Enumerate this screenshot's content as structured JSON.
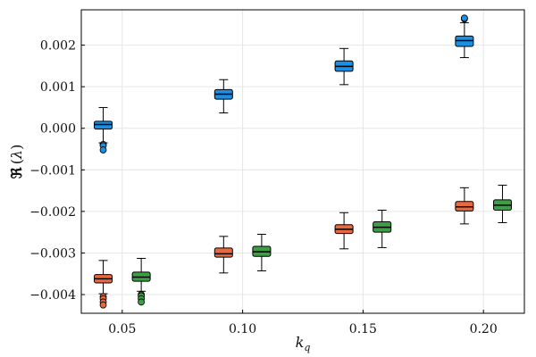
{
  "chart_data": {
    "type": "box",
    "title": "",
    "xlabel": "k_q",
    "ylabel": "ℜ(λ)",
    "xlim": [
      0.033,
      0.217
    ],
    "ylim": [
      -0.00445,
      0.00285
    ],
    "x_ticks": [
      0.05,
      0.1,
      0.15,
      0.2
    ],
    "x_tick_labels": [
      "0.05",
      "0.10",
      "0.15",
      "0.20"
    ],
    "y_ticks": [
      -0.004,
      -0.003,
      -0.002,
      -0.001,
      0.0,
      0.001,
      0.002
    ],
    "y_tick_labels": [
      "−0.004",
      "−0.003",
      "−0.002",
      "−0.001",
      "0.000",
      "0.001",
      "0.002"
    ],
    "grid": true,
    "legend": "none",
    "series": [
      {
        "name": "series-blue",
        "color": "#1a8fe3",
        "boxes": [
          {
            "x": 0.05,
            "whisker_low": -0.00035,
            "q1": -2e-05,
            "median": 9e-05,
            "q3": 0.00017,
            "whisker_high": 0.0005,
            "outliers": [
              -0.00039,
              -0.00042,
              -0.00052
            ]
          },
          {
            "x": 0.1,
            "whisker_low": 0.00037,
            "q1": 0.0007,
            "median": 0.00082,
            "q3": 0.00093,
            "whisker_high": 0.00117,
            "outliers": []
          },
          {
            "x": 0.15,
            "whisker_low": 0.00105,
            "q1": 0.00137,
            "median": 0.00149,
            "q3": 0.00162,
            "whisker_high": 0.00192,
            "outliers": []
          },
          {
            "x": 0.2,
            "whisker_low": 0.0017,
            "q1": 0.00197,
            "median": 0.00211,
            "q3": 0.00222,
            "whisker_high": 0.00254,
            "outliers": [
              0.00263,
              0.00265
            ]
          }
        ]
      },
      {
        "name": "series-orange",
        "color": "#e8693f",
        "boxes": [
          {
            "x": 0.05,
            "whisker_low": -0.00398,
            "q1": -0.00372,
            "median": -0.00362,
            "q3": -0.00352,
            "whisker_high": -0.00318,
            "outliers": [
              -0.00405,
              -0.0041,
              -0.00418,
              -0.00425
            ]
          },
          {
            "x": 0.1,
            "whisker_low": -0.00348,
            "q1": -0.0031,
            "median": -0.00302,
            "q3": -0.00288,
            "whisker_high": -0.0026,
            "outliers": []
          },
          {
            "x": 0.15,
            "whisker_low": -0.0029,
            "q1": -0.00253,
            "median": -0.00243,
            "q3": -0.00232,
            "whisker_high": -0.00203,
            "outliers": []
          },
          {
            "x": 0.2,
            "whisker_low": -0.0023,
            "q1": -0.00199,
            "median": -0.00189,
            "q3": -0.00176,
            "whisker_high": -0.00143,
            "outliers": []
          }
        ]
      },
      {
        "name": "series-green",
        "color": "#3d9e46",
        "boxes": [
          {
            "x": 0.05,
            "whisker_low": -0.00392,
            "q1": -0.00368,
            "median": -0.00358,
            "q3": -0.00346,
            "whisker_high": -0.00313,
            "outliers": [
              -0.004,
              -0.00403,
              -0.0041,
              -0.00418
            ]
          },
          {
            "x": 0.1,
            "whisker_low": -0.00343,
            "q1": -0.00308,
            "median": -0.00297,
            "q3": -0.00284,
            "whisker_high": -0.00255,
            "outliers": []
          },
          {
            "x": 0.15,
            "whisker_low": -0.00287,
            "q1": -0.0025,
            "median": -0.00238,
            "q3": -0.00225,
            "whisker_high": -0.00197,
            "outliers": []
          },
          {
            "x": 0.2,
            "whisker_low": -0.00227,
            "q1": -0.00197,
            "median": -0.00185,
            "q3": -0.00172,
            "whisker_high": -0.00137,
            "outliers": []
          }
        ]
      }
    ]
  }
}
